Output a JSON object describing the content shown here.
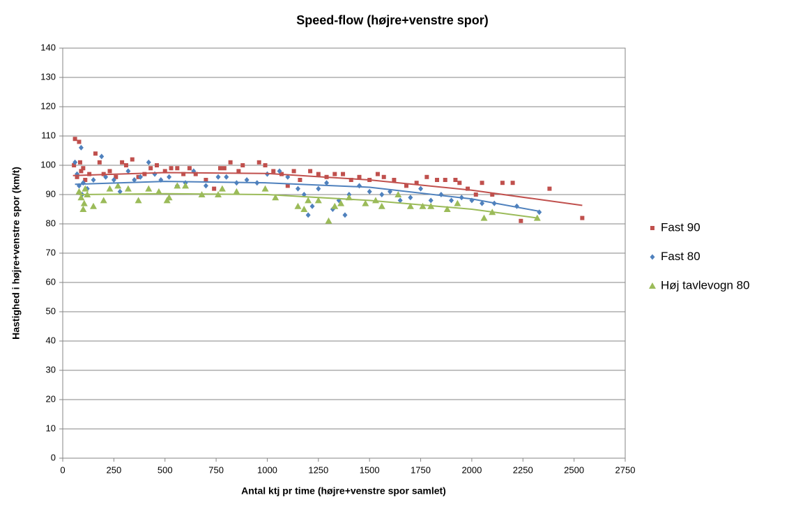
{
  "chart_data": {
    "type": "scatter",
    "title": "Speed-flow (højre+venstre spor)",
    "x_label": "Antal ktj pr time (højre+venstre spor samlet)",
    "y_label": "Hastighed i højre+venstre  spor (km/t)",
    "xlim": [
      0,
      2750
    ],
    "xticks": [
      0,
      250,
      500,
      750,
      1000,
      1250,
      1500,
      1750,
      2000,
      2250,
      2500,
      2750
    ],
    "ylim": [
      0,
      140
    ],
    "yticks": [
      0,
      10,
      20,
      30,
      40,
      50,
      60,
      70,
      80,
      90,
      100,
      110,
      120,
      130,
      140
    ],
    "grid": true,
    "legend": "right",
    "series": [
      {
        "name": "Fast 90",
        "color": "#c0504d",
        "marker": "square",
        "x": [
          55,
          60,
          70,
          80,
          85,
          90,
          100,
          110,
          130,
          160,
          180,
          200,
          230,
          260,
          290,
          310,
          340,
          370,
          400,
          430,
          460,
          500,
          530,
          560,
          590,
          620,
          650,
          700,
          740,
          770,
          790,
          820,
          860,
          880,
          960,
          990,
          1030,
          1070,
          1100,
          1130,
          1160,
          1210,
          1250,
          1290,
          1330,
          1370,
          1410,
          1450,
          1500,
          1540,
          1570,
          1620,
          1680,
          1730,
          1780,
          1830,
          1870,
          1920,
          1940,
          1980,
          2020,
          2050,
          2100,
          2150,
          2200,
          2240,
          2380,
          2540
        ],
        "values": [
          100,
          109,
          96,
          108,
          101,
          98,
          99,
          95,
          97,
          104,
          101,
          97,
          98,
          96,
          101,
          100,
          102,
          96,
          97,
          99,
          100,
          98,
          99,
          99,
          97,
          99,
          97,
          95,
          92,
          99,
          99,
          101,
          98,
          100,
          101,
          100,
          98,
          97,
          93,
          98,
          95,
          98,
          97,
          96,
          97,
          97,
          95,
          96,
          95,
          97,
          96,
          95,
          93,
          94,
          96,
          95,
          95,
          95,
          94,
          92,
          90,
          94,
          90,
          94,
          94,
          81,
          92,
          82
        ],
        "trend_x": [
          50,
          500,
          1000,
          1500,
          2000,
          2540
        ],
        "trend_y": [
          96.5,
          97.5,
          97.2,
          95,
          91.5,
          86.3
        ]
      },
      {
        "name": "Fast 80",
        "color": "#4f81bd",
        "marker": "diamond",
        "x": [
          60,
          70,
          80,
          90,
          95,
          100,
          120,
          150,
          190,
          210,
          250,
          280,
          320,
          350,
          380,
          420,
          450,
          480,
          520,
          560,
          600,
          640,
          700,
          760,
          800,
          850,
          900,
          950,
          1000,
          1060,
          1100,
          1150,
          1180,
          1200,
          1220,
          1250,
          1290,
          1320,
          1350,
          1380,
          1400,
          1450,
          1500,
          1560,
          1600,
          1650,
          1700,
          1750,
          1800,
          1850,
          1900,
          1950,
          2000,
          2050,
          2110,
          2220,
          2330
        ],
        "values": [
          101,
          97,
          93,
          106,
          90,
          94,
          92,
          95,
          103,
          96,
          95,
          91,
          98,
          95,
          96,
          101,
          97,
          95,
          96,
          93,
          94,
          98,
          93,
          96,
          96,
          94,
          95,
          94,
          97,
          98,
          96,
          92,
          90,
          83,
          86,
          92,
          94,
          85,
          88,
          83,
          90,
          93,
          91,
          90,
          91,
          88,
          89,
          92,
          88,
          90,
          88,
          89,
          88,
          87,
          87,
          86,
          84
        ],
        "trend_x": [
          60,
          500,
          1000,
          1500,
          2000,
          2330
        ],
        "trend_y": [
          93.5,
          94.5,
          94,
          92.5,
          88.5,
          84.3
        ]
      },
      {
        "name": "Høj tavlevogn 80",
        "color": "#9bbb59",
        "marker": "triangle",
        "x": [
          80,
          90,
          100,
          105,
          110,
          120,
          150,
          200,
          230,
          270,
          320,
          370,
          420,
          470,
          510,
          520,
          560,
          600,
          680,
          760,
          780,
          850,
          990,
          1040,
          1150,
          1180,
          1200,
          1250,
          1300,
          1330,
          1360,
          1400,
          1480,
          1530,
          1560,
          1640,
          1700,
          1760,
          1800,
          1880,
          1930,
          2060,
          2100,
          2320
        ],
        "values": [
          91,
          89,
          85,
          87,
          92,
          90,
          86,
          88,
          92,
          93,
          92,
          88,
          92,
          91,
          88,
          89,
          93,
          93,
          90,
          90,
          92,
          91,
          92,
          89,
          86,
          85,
          88,
          88,
          81,
          86,
          87,
          89,
          87,
          88,
          86,
          90,
          86,
          86,
          86,
          85,
          87,
          82,
          84,
          82
        ],
        "trend_x": [
          80,
          500,
          1000,
          1500,
          2000,
          2320
        ],
        "trend_y": [
          90,
          90.3,
          90,
          88,
          85,
          82
        ]
      }
    ]
  }
}
